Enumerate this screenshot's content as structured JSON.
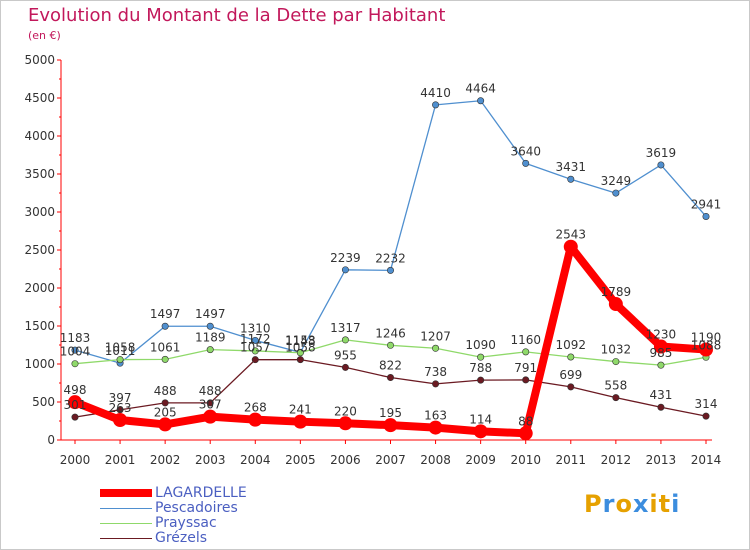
{
  "chart_data": {
    "type": "line",
    "title": "Evolution du Montant de la Dette par Habitant",
    "subtitle": "(en €)",
    "x": [
      "2000",
      "2001",
      "2002",
      "2003",
      "2004",
      "2005",
      "2006",
      "2007",
      "2008",
      "2009",
      "2010",
      "2011",
      "2012",
      "2013",
      "2014"
    ],
    "ylim": [
      0,
      5000
    ],
    "yticks": [
      0,
      500,
      1000,
      1500,
      2000,
      2500,
      3000,
      3500,
      4000,
      4500,
      5000
    ],
    "grid": false,
    "legend_position": "bottom-left",
    "series": [
      {
        "name": "LAGARDELLE",
        "color": "#ff0000",
        "values": [
          498,
          263,
          205,
          307,
          268,
          241,
          220,
          195,
          163,
          114,
          88,
          2543,
          1789,
          1230,
          1190
        ]
      },
      {
        "name": "Pescadoires",
        "color": "#4f8fcf",
        "values": [
          1183,
          1011,
          1497,
          1497,
          1310,
          1153,
          2239,
          2232,
          4410,
          4464,
          3640,
          3431,
          3249,
          3619,
          2941
        ]
      },
      {
        "name": "Prayssac",
        "color": "#8fd96a",
        "values": [
          1004,
          1058,
          1061,
          1189,
          1172,
          1148,
          1317,
          1246,
          1207,
          1090,
          1160,
          1092,
          1032,
          985,
          1088
        ]
      },
      {
        "name": "Grézels",
        "color": "#6b1a22",
        "values": [
          301,
          397,
          488,
          488,
          1057,
          1058,
          955,
          822,
          738,
          788,
          791,
          699,
          558,
          431,
          314
        ]
      }
    ]
  },
  "logo": {
    "letters": [
      "P",
      "r",
      "o",
      "x",
      "i",
      "t",
      "i"
    ],
    "colors": [
      "#e6a100",
      "#3c8dde",
      "#e6a100",
      "#3c8dde",
      "#e6a100",
      "#e6a100",
      "#3c8dde"
    ]
  }
}
